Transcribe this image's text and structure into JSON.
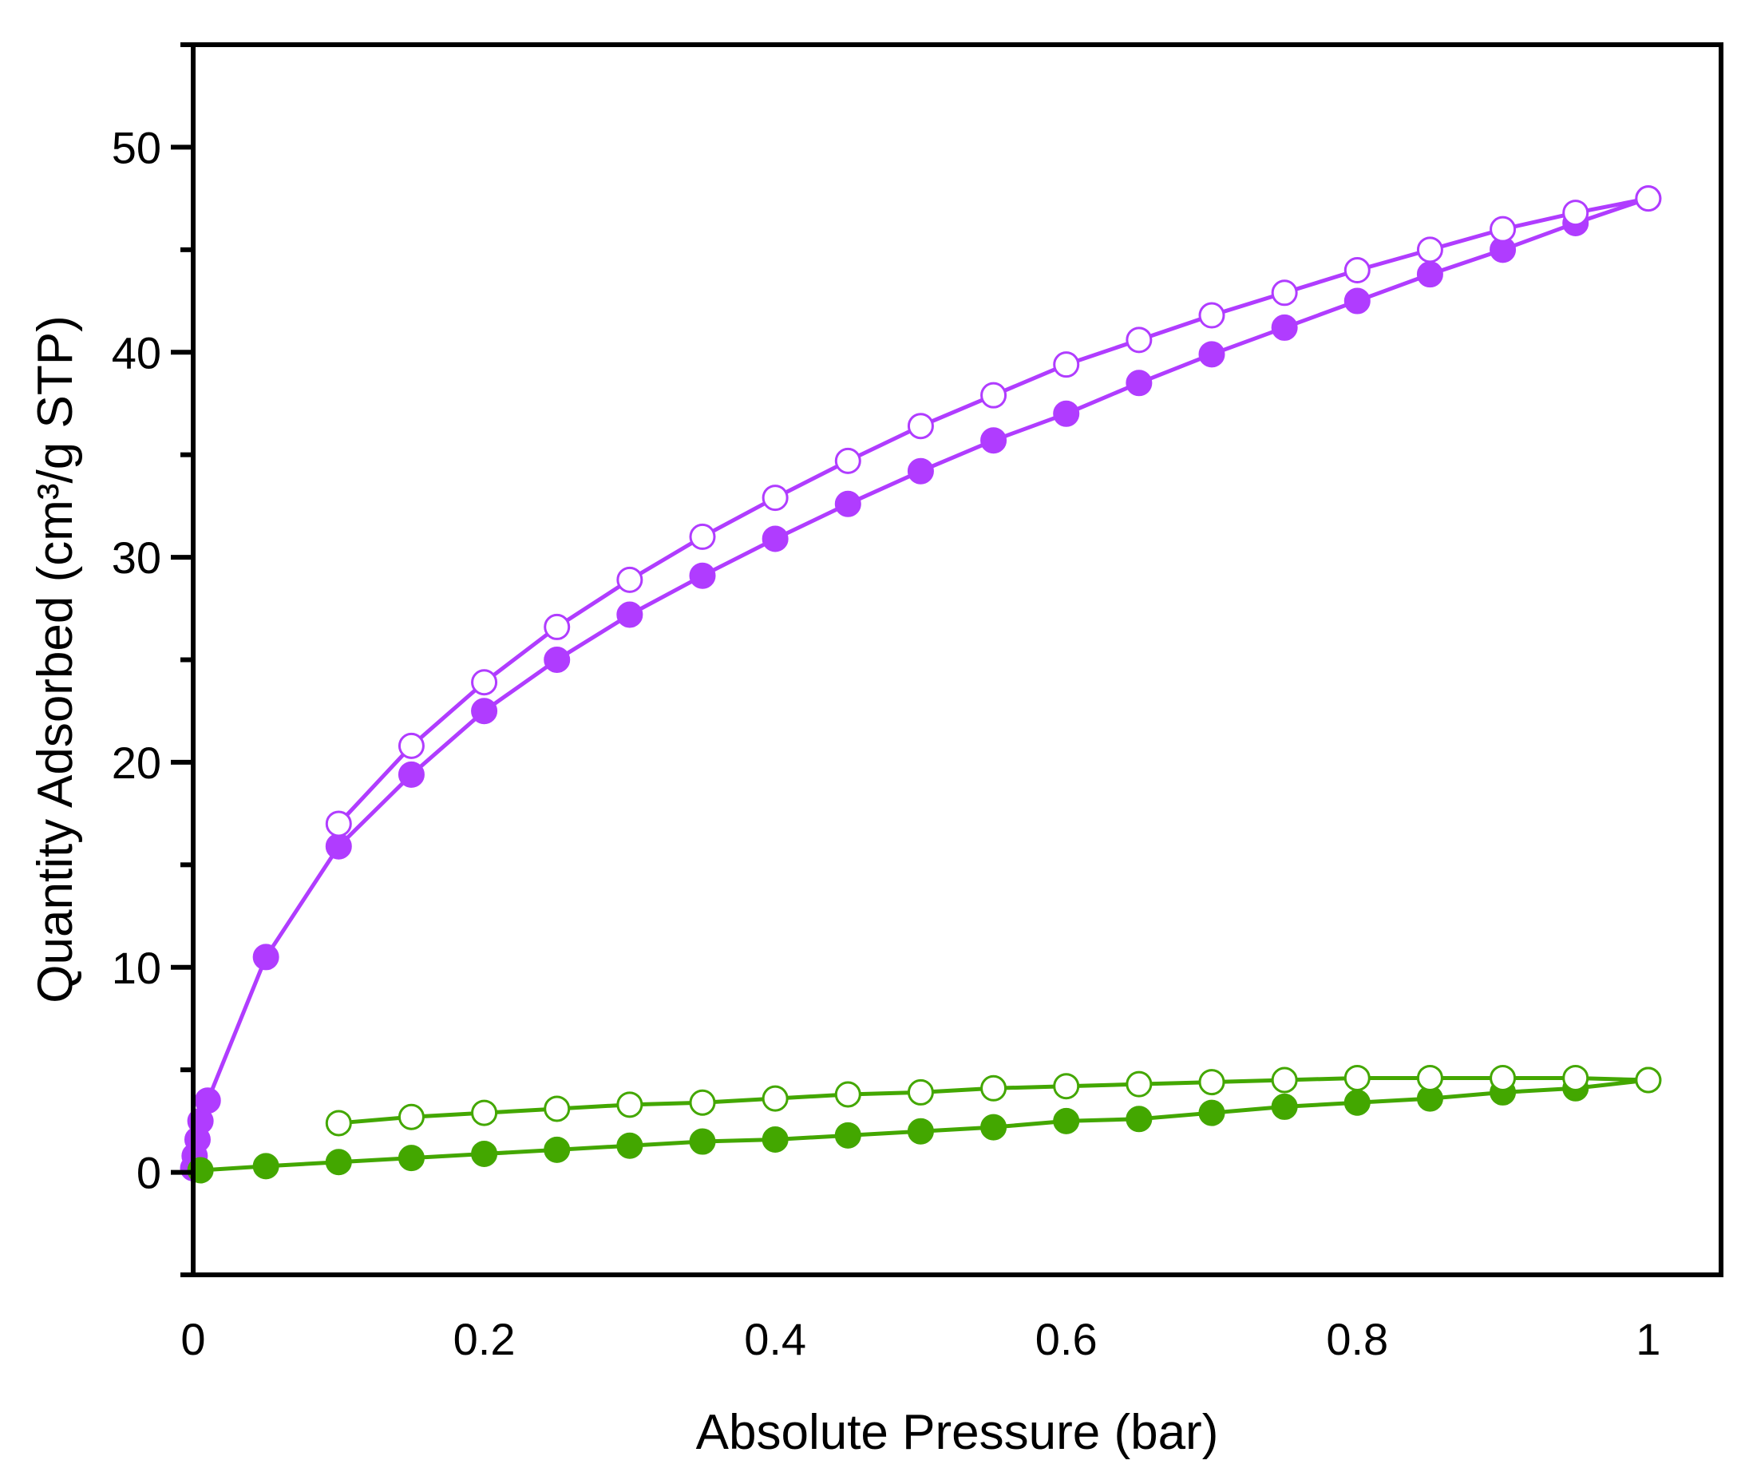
{
  "chart_data": {
    "type": "scatter",
    "title": "",
    "xlabel": "Absolute Pressure (bar)",
    "ylabel": "Quantity Adsorbed (cm³/g STP)",
    "xlim": [
      0,
      1.05
    ],
    "ylim": [
      -5,
      55
    ],
    "xticks": [
      0,
      0.2,
      0.4,
      0.6,
      0.8,
      1
    ],
    "xtick_labels": [
      "0",
      "0.2",
      "0.4",
      "0.6",
      "0.8",
      "1"
    ],
    "yticks": [
      0,
      10,
      20,
      30,
      40,
      50
    ],
    "ytick_labels": [
      "0",
      "10",
      "20",
      "30",
      "40",
      "50"
    ],
    "y_minor_step": 5,
    "grid": false,
    "series": [
      {
        "color": "#b03cff",
        "marker": "filled-circle",
        "x": [
          0,
          0.001,
          0.003,
          0.005,
          0.01,
          0.05,
          0.1,
          0.15,
          0.2,
          0.25,
          0.3,
          0.35,
          0.4,
          0.45,
          0.5,
          0.55,
          0.6,
          0.65,
          0.7,
          0.75,
          0.8,
          0.85,
          0.9,
          0.95,
          1.0
        ],
        "y": [
          0.2,
          0.8,
          1.6,
          2.5,
          3.5,
          10.5,
          15.9,
          19.4,
          22.5,
          25.0,
          27.2,
          29.1,
          30.9,
          32.6,
          34.2,
          35.7,
          37.0,
          38.5,
          39.9,
          41.2,
          42.5,
          43.8,
          45.0,
          46.3,
          47.5
        ]
      },
      {
        "color": "#b03cff",
        "marker": "open-circle",
        "x": [
          1.0,
          0.95,
          0.9,
          0.85,
          0.8,
          0.75,
          0.7,
          0.65,
          0.6,
          0.55,
          0.5,
          0.45,
          0.4,
          0.35,
          0.3,
          0.25,
          0.2,
          0.15,
          0.1
        ],
        "y": [
          47.5,
          46.8,
          46.0,
          45.0,
          44.0,
          42.9,
          41.8,
          40.6,
          39.4,
          37.9,
          36.4,
          34.7,
          32.9,
          31.0,
          28.9,
          26.6,
          23.9,
          20.8,
          17.0
        ]
      },
      {
        "color": "#43a700",
        "marker": "filled-circle",
        "x": [
          0.005,
          0.05,
          0.1,
          0.15,
          0.2,
          0.25,
          0.3,
          0.35,
          0.4,
          0.45,
          0.5,
          0.55,
          0.6,
          0.65,
          0.7,
          0.75,
          0.8,
          0.85,
          0.9,
          0.95,
          1.0
        ],
        "y": [
          0.1,
          0.3,
          0.5,
          0.7,
          0.9,
          1.1,
          1.3,
          1.5,
          1.6,
          1.8,
          2.0,
          2.2,
          2.5,
          2.6,
          2.9,
          3.2,
          3.4,
          3.6,
          3.9,
          4.1,
          4.5
        ]
      },
      {
        "color": "#43a700",
        "marker": "open-circle",
        "x": [
          1.0,
          0.95,
          0.9,
          0.85,
          0.8,
          0.75,
          0.7,
          0.65,
          0.6,
          0.55,
          0.5,
          0.45,
          0.4,
          0.35,
          0.3,
          0.25,
          0.2,
          0.15,
          0.1
        ],
        "y": [
          4.5,
          4.6,
          4.6,
          4.6,
          4.6,
          4.5,
          4.4,
          4.3,
          4.2,
          4.1,
          3.9,
          3.8,
          3.6,
          3.4,
          3.3,
          3.1,
          2.9,
          2.7,
          2.4
        ]
      }
    ]
  }
}
